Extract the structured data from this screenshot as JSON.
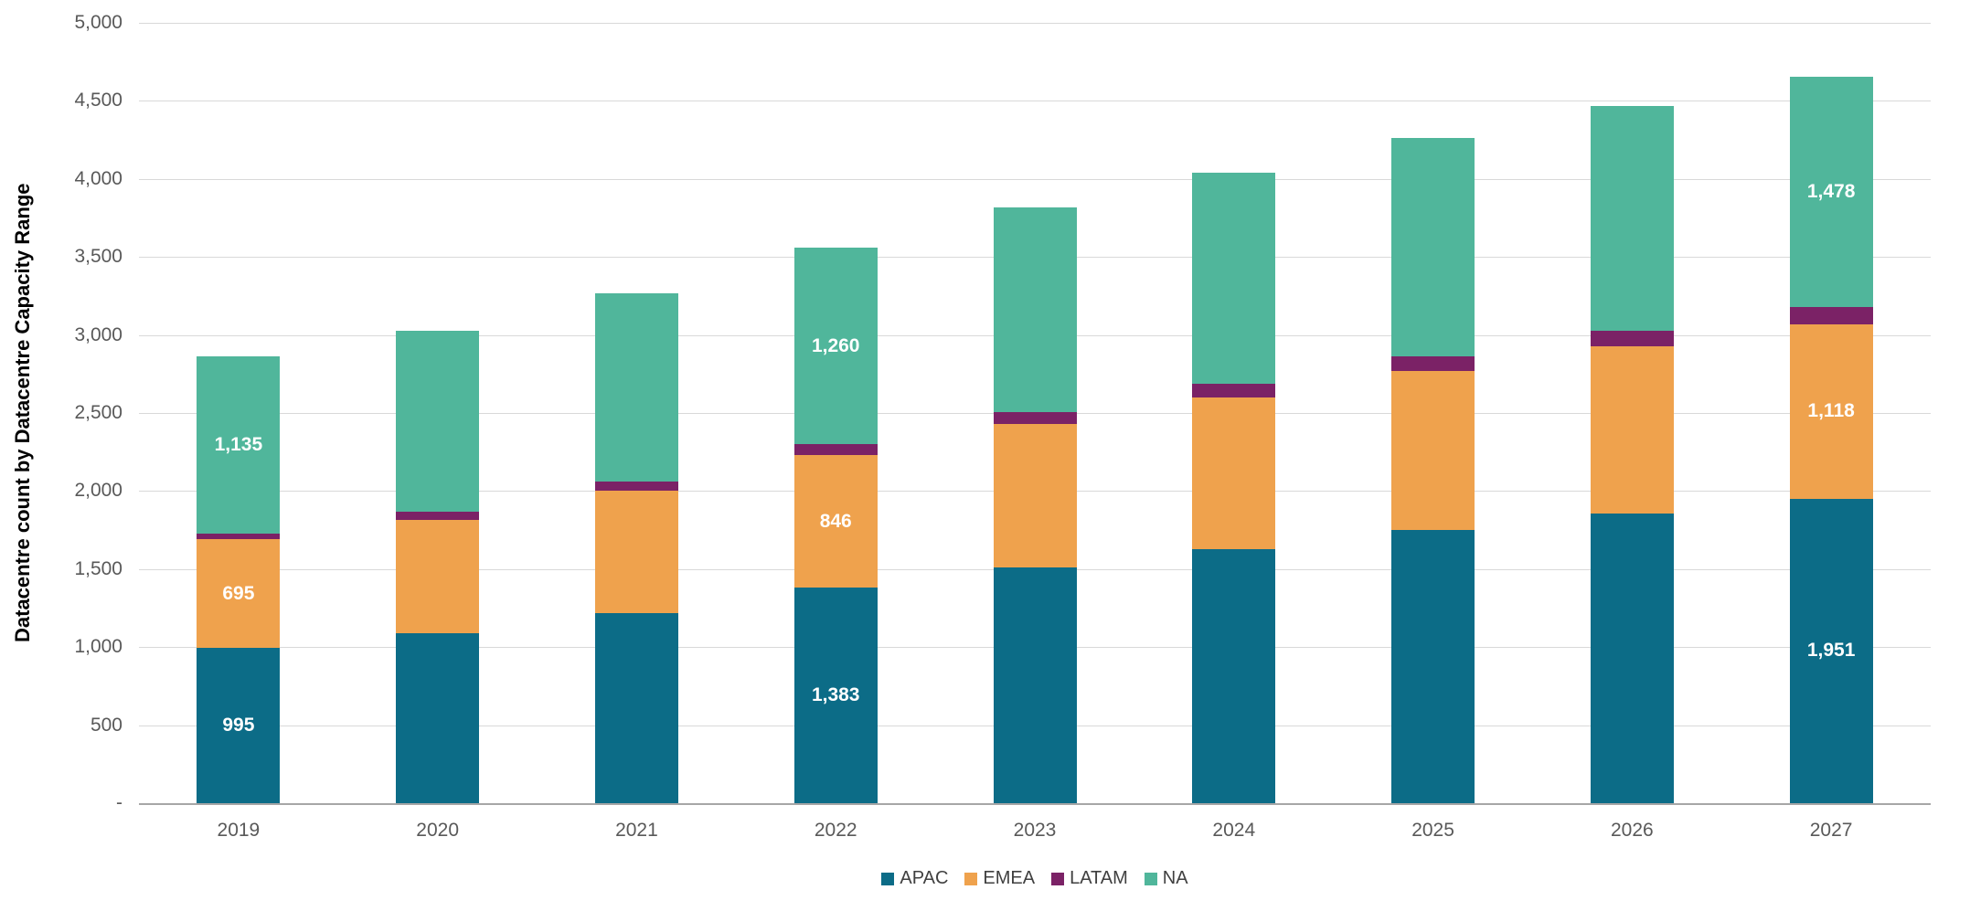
{
  "chart_data": {
    "type": "bar",
    "stacked": true,
    "title": "",
    "xlabel": "",
    "ylabel": "Datacentre count by Datacentre Capacity Range",
    "ylim": [
      0,
      5000
    ],
    "ytick_interval": 500,
    "ytick_labels": [
      "-",
      "500",
      "1,000",
      "1,500",
      "2,000",
      "2,500",
      "3,000",
      "3,500",
      "4,000",
      "4,500",
      "5,000"
    ],
    "grid": true,
    "legend_position": "bottom",
    "categories": [
      "2019",
      "2020",
      "2021",
      "2022",
      "2023",
      "2024",
      "2025",
      "2026",
      "2027"
    ],
    "series": [
      {
        "name": "APAC",
        "color": "#0c6c87",
        "values": [
          995,
          1090,
          1220,
          1383,
          1510,
          1630,
          1750,
          1855,
          1951
        ]
      },
      {
        "name": "EMEA",
        "color": "#efa24d",
        "values": [
          695,
          725,
          785,
          846,
          920,
          970,
          1020,
          1070,
          1118
        ]
      },
      {
        "name": "LATAM",
        "color": "#7b2266",
        "values": [
          40,
          50,
          55,
          70,
          75,
          85,
          95,
          100,
          110
        ]
      },
      {
        "name": "NA",
        "color": "#50b69b",
        "values": [
          1135,
          1160,
          1210,
          1260,
          1310,
          1355,
          1400,
          1440,
          1478
        ]
      }
    ],
    "data_labels": {
      "categories": [
        "2019",
        "2022",
        "2027"
      ],
      "series": [
        "APAC",
        "EMEA",
        "NA"
      ],
      "color": "#ffffff",
      "shown_values": {
        "2019": {
          "APAC": "995",
          "EMEA": "695",
          "NA": "1,135"
        },
        "2022": {
          "APAC": "1,383",
          "EMEA": "846",
          "NA": "1,260"
        },
        "2027": {
          "APAC": "1,951",
          "EMEA": "1,118",
          "NA": "1,478"
        }
      }
    },
    "colors": {
      "gridline": "#d9d9d9",
      "axis_line": "#a6a6a6",
      "tick_text": "#595959",
      "legend_text": "#404040",
      "background": "#ffffff"
    }
  }
}
